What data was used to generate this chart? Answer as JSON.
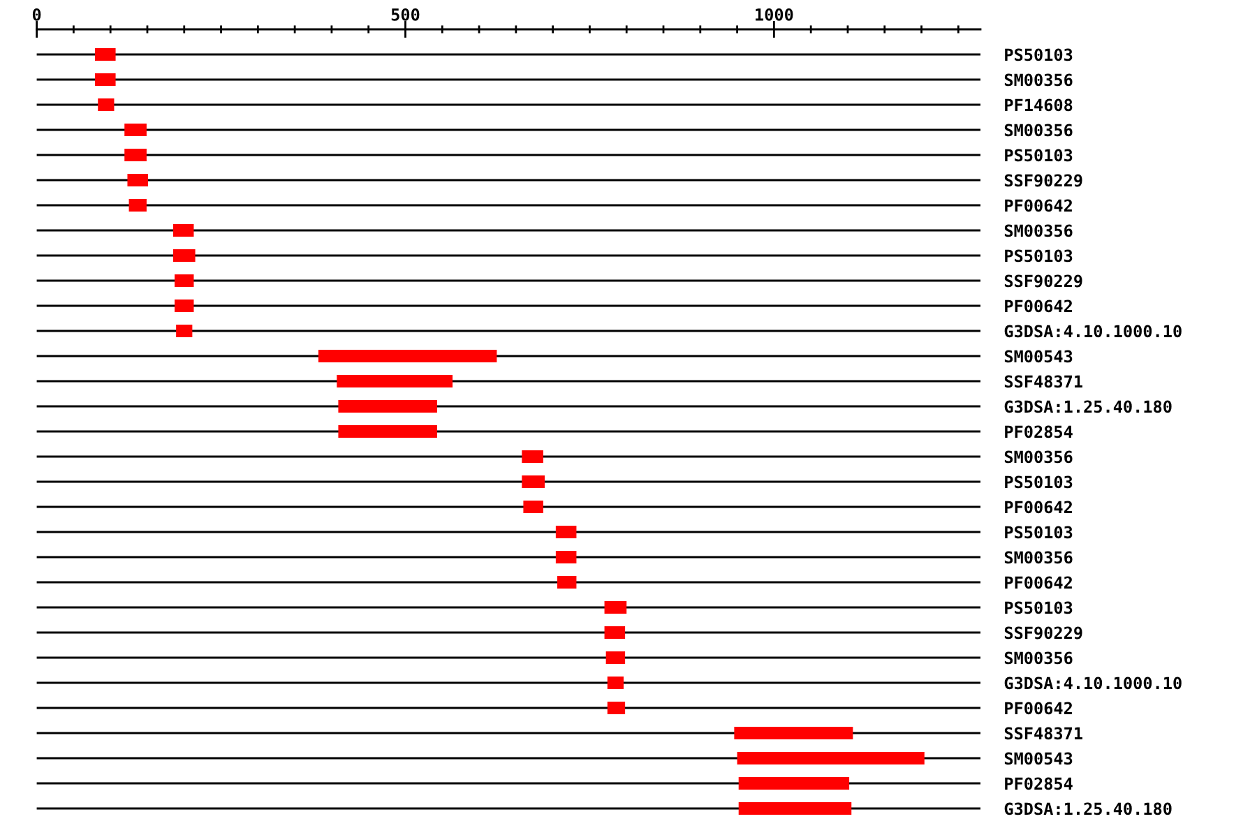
{
  "chart_data": {
    "type": "bar",
    "orientation": "horizontal",
    "categories": [
      "PS50103",
      "SM00356",
      "PF14608",
      "SM00356",
      "PS50103",
      "SSF90229",
      "PF00642",
      "SM00356",
      "PS50103",
      "SSF90229",
      "PF00642",
      "G3DSA:4.10.1000.10",
      "SM00543",
      "SSF48371",
      "G3DSA:1.25.40.180",
      "PF02854",
      "SM00356",
      "PS50103",
      "PF00642",
      "PS50103",
      "SM00356",
      "PF00642",
      "PS50103",
      "SSF90229",
      "SM00356",
      "G3DSA:4.10.1000.10",
      "PF00642",
      "SSF48371",
      "SM00543",
      "PF02854",
      "G3DSA:1.25.40.180"
    ],
    "base": [
      79,
      79,
      83,
      119,
      119,
      123,
      125,
      185,
      185,
      187,
      187,
      189,
      382,
      407,
      409,
      409,
      658,
      658,
      660,
      704,
      704,
      706,
      770,
      770,
      772,
      774,
      774,
      946,
      950,
      952,
      952
    ],
    "values": [
      28,
      28,
      22,
      30,
      30,
      28,
      24,
      28,
      30,
      26,
      26,
      22,
      242,
      157,
      134,
      134,
      29,
      31,
      27,
      28,
      28,
      26,
      30,
      28,
      26,
      22,
      24,
      161,
      254,
      150,
      153
    ],
    "color": "#ff0000",
    "xlim": [
      0,
      1280
    ],
    "xticks": [
      0,
      {
        "value": 50,
        "label": null
      },
      {
        "value": 100,
        "label": null
      },
      {
        "value": 150,
        "label": null
      },
      {
        "value": 200,
        "label": null
      },
      {
        "value": 250,
        "label": null
      },
      {
        "value": 300,
        "label": null
      },
      {
        "value": 350,
        "label": null
      },
      {
        "value": 400,
        "label": null
      },
      {
        "value": 450,
        "label": null
      },
      500,
      {
        "value": 550,
        "label": null
      },
      {
        "value": 600,
        "label": null
      },
      {
        "value": 650,
        "label": null
      },
      {
        "value": 700,
        "label": null
      },
      {
        "value": 750,
        "label": null
      },
      {
        "value": 800,
        "label": null
      },
      {
        "value": 850,
        "label": null
      },
      {
        "value": 900,
        "label": null
      },
      {
        "value": 950,
        "label": null
      },
      1000,
      {
        "value": 1050,
        "label": null
      },
      {
        "value": 1100,
        "label": null
      },
      {
        "value": 1150,
        "label": null
      },
      {
        "value": 1200,
        "label": null
      },
      {
        "value": 1250,
        "label": null
      }
    ],
    "grid": "y"
  }
}
